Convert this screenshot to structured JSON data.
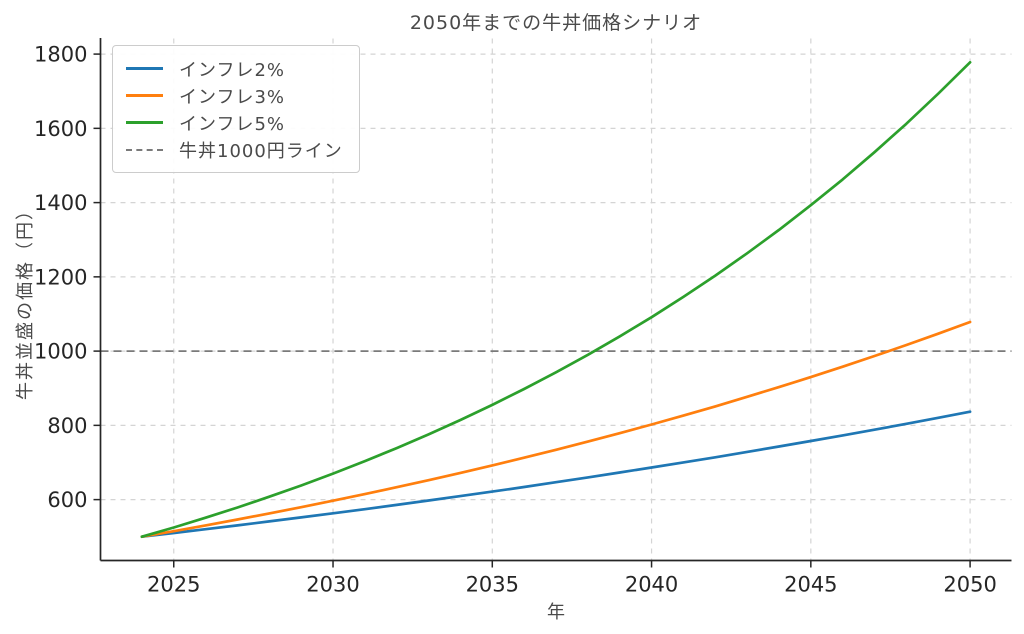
{
  "chart_data": {
    "type": "line",
    "title": "2050年までの牛丼価格シナリオ",
    "xlabel": "年",
    "ylabel": "牛丼並盛の価格（円）",
    "x": [
      2024,
      2025,
      2026,
      2027,
      2028,
      2029,
      2030,
      2031,
      2032,
      2033,
      2034,
      2035,
      2036,
      2037,
      2038,
      2039,
      2040,
      2041,
      2042,
      2043,
      2044,
      2045,
      2046,
      2047,
      2048,
      2049,
      2050
    ],
    "series": [
      {
        "name": "インフレ2%",
        "color": "#1f77b4",
        "values": [
          500.0,
          510.0,
          520.2,
          530.6,
          541.2,
          552.0,
          563.1,
          574.3,
          585.8,
          597.5,
          609.5,
          621.7,
          634.1,
          646.8,
          659.7,
          672.9,
          686.4,
          700.1,
          714.1,
          728.4,
          743.0,
          757.8,
          773.0,
          788.4,
          804.2,
          820.3,
          836.7
        ]
      },
      {
        "name": "インフレ3%",
        "color": "#ff7f0e",
        "values": [
          500.0,
          515.0,
          530.5,
          546.4,
          562.8,
          579.6,
          597.0,
          614.9,
          633.4,
          652.4,
          672.0,
          692.1,
          712.9,
          734.3,
          756.3,
          779.0,
          802.4,
          826.4,
          851.2,
          876.8,
          903.1,
          930.1,
          958.1,
          986.8,
          1016.4,
          1046.9,
          1078.3
        ]
      },
      {
        "name": "インフレ5%",
        "color": "#2ca02c",
        "values": [
          500.0,
          525.0,
          551.3,
          578.8,
          607.8,
          638.1,
          670.0,
          703.6,
          738.7,
          775.7,
          814.4,
          855.2,
          897.9,
          942.8,
          990.0,
          1039.5,
          1091.4,
          1146.0,
          1203.3,
          1263.5,
          1326.6,
          1393.0,
          1462.6,
          1535.8,
          1612.6,
          1693.2,
          1777.8
        ]
      }
    ],
    "reference_line": {
      "label": "牛丼1000円ライン",
      "y": 1000,
      "color": "#7a7a7a",
      "line_style": "dashed"
    },
    "xticks": [
      2025,
      2030,
      2035,
      2040,
      2045,
      2050
    ],
    "yticks": [
      600,
      800,
      1000,
      1200,
      1400,
      1600,
      1800
    ],
    "xlim": [
      2022.7,
      2051.3
    ],
    "ylim": [
      436,
      1842
    ],
    "grid": true,
    "grid_color": "#d4d4d4",
    "spine_color": "#262626",
    "tick_label_color": "#262626",
    "legend_position": "upper-left"
  }
}
